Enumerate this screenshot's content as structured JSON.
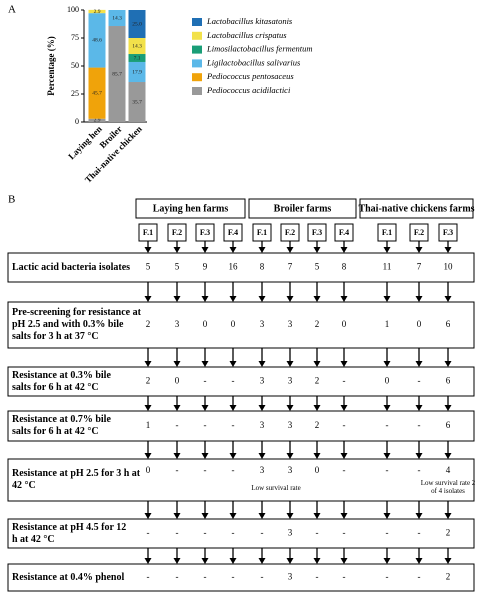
{
  "panel_labels": [
    "A",
    "B"
  ],
  "chart_data": {
    "type": "stacked_bar",
    "y_label": "Percentage (%)",
    "categories": [
      "Laying hen",
      "Broiler",
      "Thai-native chicken"
    ],
    "series": [
      {
        "name": "Pediococcus acidilactici",
        "color": "#999999",
        "values": [
          2.9,
          85.7,
          35.7
        ]
      },
      {
        "name": "Pediococcus pentosaceus",
        "color": "#f0a30a",
        "values": [
          45.7,
          null,
          null
        ]
      },
      {
        "name": "Ligilactobacillus salivarius",
        "color": "#5bb8e8",
        "values": [
          48.6,
          14.3,
          17.9
        ]
      },
      {
        "name": "Limosilactobacillus fermentum",
        "color": "#1a9e77",
        "values": [
          null,
          null,
          7.1
        ]
      },
      {
        "name": "Lactobacillus crispatus",
        "color": "#f2e14a",
        "values": [
          2.9,
          null,
          14.3
        ]
      },
      {
        "name": "Lactobacillus kitasatonis",
        "color": "#1f6fb4",
        "values": [
          null,
          null,
          25
        ],
        "value_labels": [
          null,
          null,
          "25.0"
        ]
      }
    ],
    "ylim": [
      0,
      100
    ],
    "yticks": [
      0,
      25,
      50,
      75,
      100
    ],
    "legend": "right"
  },
  "flowchart": {
    "groups": [
      {
        "title": "Laying hen farms",
        "farms": [
          "F.1",
          "F.2",
          "F.3",
          "F.4"
        ]
      },
      {
        "title": "Broiler farms",
        "farms": [
          "F.1",
          "F.2",
          "F.3",
          "F.4"
        ]
      },
      {
        "title": "Thai-native chickens farms",
        "farms": [
          "F.1",
          "F.2",
          "F.3"
        ]
      }
    ],
    "rows": [
      {
        "label": "Lactic acid bacteria isolates",
        "values": [
          5,
          5,
          9,
          16,
          8,
          7,
          5,
          8,
          11,
          7,
          10
        ]
      },
      {
        "label": "Pre-screening for resistance at pH 2.5 and with 0.3% bile salts for 3 h at 37 °C",
        "values": [
          2,
          3,
          0,
          0,
          3,
          3,
          2,
          0,
          1,
          0,
          6
        ]
      },
      {
        "label": "Resistance at 0.3% bile salts for 6 h at 42 °C",
        "values": [
          2,
          0,
          "-",
          "-",
          3,
          3,
          2,
          "-",
          0,
          "-",
          6
        ]
      },
      {
        "label": "Resistance at 0.7% bile salts for 6 h at 42 °C",
        "values": [
          1,
          "-",
          "-",
          "-",
          3,
          3,
          2,
          "-",
          "-",
          "-",
          6
        ]
      },
      {
        "label": "Resistance at pH 2.5 for 3 h at 42 °C",
        "values": [
          0,
          "-",
          "-",
          "-",
          3,
          3,
          0,
          "-",
          "-",
          "-",
          4
        ],
        "notes": [
          "Low survival rate",
          "Low survival rate 2 of 4 isolates"
        ]
      },
      {
        "label": "Resistance at pH 4.5 for 12 h at 42 °C",
        "values": [
          "-",
          "-",
          "-",
          "-",
          "-",
          3,
          "-",
          "-",
          "-",
          "-",
          2
        ]
      },
      {
        "label": "Resistance at 0.4% phenol",
        "values": [
          "-",
          "-",
          "-",
          "-",
          "-",
          3,
          "-",
          "-",
          "-",
          "-",
          2
        ]
      }
    ]
  }
}
